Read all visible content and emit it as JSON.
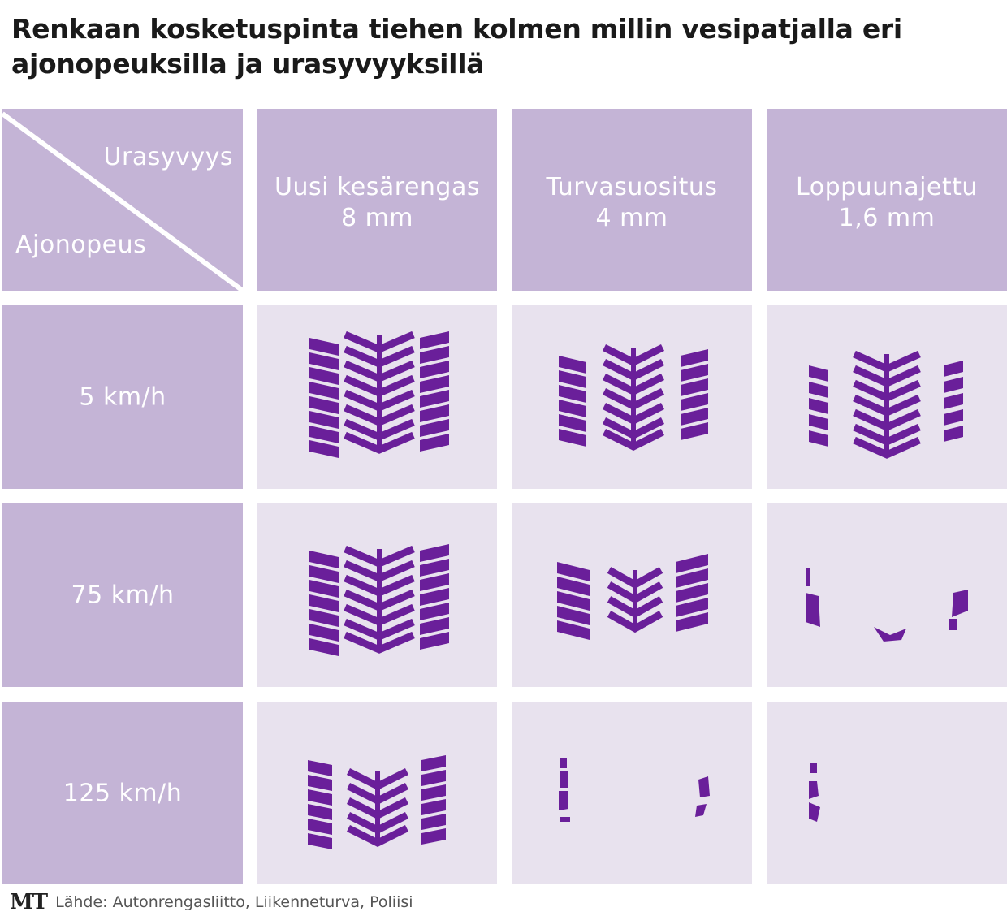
{
  "title": "Renkaan kosketuspinta tiehen kolmen millin vesipatjalla eri ajonopeuksilla ja urasyvyyksillä",
  "corner": {
    "top_label": "Urasyvyys",
    "bottom_label": "Ajonopeus"
  },
  "columns": [
    {
      "line1": "Uusi kesärengas",
      "line2": "8 mm"
    },
    {
      "line1": "Turvasuositus",
      "line2": "4 mm"
    },
    {
      "line1": "Loppuunajettu",
      "line2": "1,6 mm"
    }
  ],
  "rows": [
    {
      "label": "5 km/h"
    },
    {
      "label": "75 km/h"
    },
    {
      "label": "125 km/h"
    }
  ],
  "colors": {
    "header": "#c4b4d6",
    "cell": "#e8e2ee",
    "tread": "#6a1f9a",
    "text_on_header": "#ffffff"
  },
  "footer": {
    "logo": "MT",
    "source": "Lähde: Autonrengasliitto, Liikenneturva, Poliisi"
  }
}
